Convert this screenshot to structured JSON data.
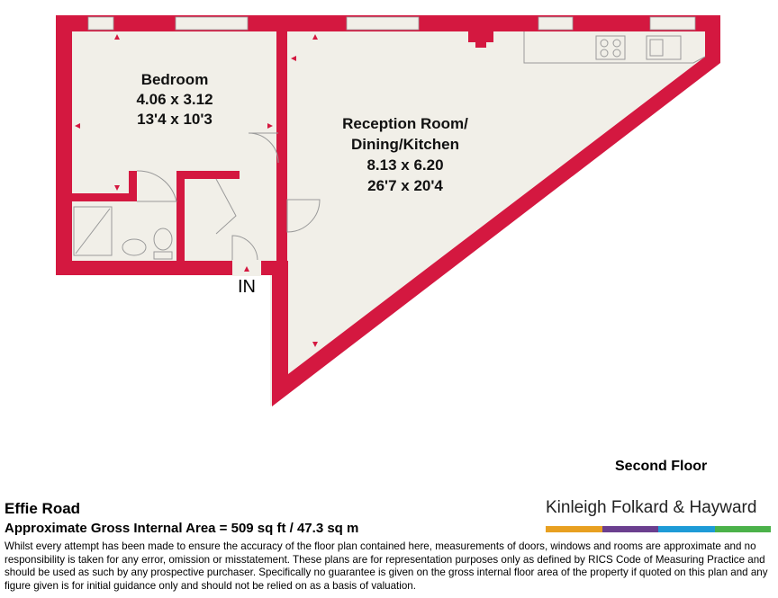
{
  "colors": {
    "wall": "#d41840",
    "floor": "#f1efe8",
    "fixture": "#9a9a9a",
    "brand_bar": [
      "#e8a021",
      "#6b3f8f",
      "#1e9bd7",
      "#4bb24a"
    ]
  },
  "rooms": {
    "bedroom": {
      "name": "Bedroom",
      "metric": "4.06 x 3.12",
      "imperial": "13'4 x 10'3"
    },
    "reception": {
      "name_line1": "Reception Room/",
      "name_line2": "Dining/Kitchen",
      "metric": "8.13 x 6.20",
      "imperial": "26'7 x 20'4"
    }
  },
  "entrance_label": "IN",
  "floor_label": "Second Floor",
  "property": {
    "title": "Effie Road",
    "gross_area": "Approximate Gross Internal Area = 509 sq ft / 47.3 sq m"
  },
  "brand": {
    "name": "Kinleigh Folkard & Hayward"
  },
  "disclaimer": "Whilst every attempt has been made to ensure the accuracy of the floor plan contained here, measurements of doors, windows and rooms are approximate and no responsibility is taken for any error, omission or misstatement. These plans are for representation purposes only as defined by RICS Code of Measuring Practice and should be used as such by any prospective purchaser. Specifically no guarantee is given on the gross internal floor area of the property if quoted on this plan and any figure given is for initial guidance only and should not be relied on as a basis of valuation."
}
